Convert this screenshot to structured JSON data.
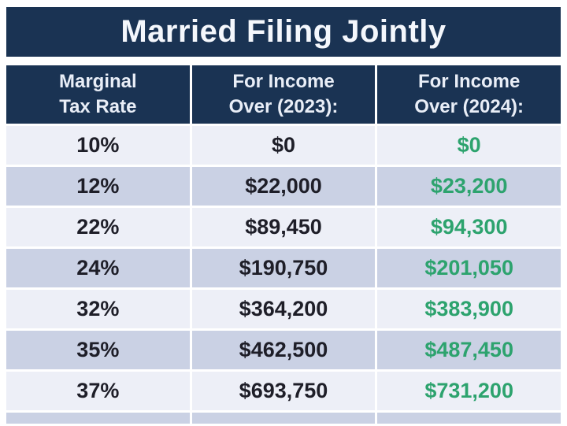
{
  "chart_data": {
    "type": "table",
    "title": "Married Filing Jointly",
    "columns": [
      "Marginal Tax Rate",
      "For Income Over (2023):",
      "For Income Over (2024):"
    ],
    "rows": [
      [
        "10%",
        "$0",
        "$0"
      ],
      [
        "12%",
        "$22,000",
        "$23,200"
      ],
      [
        "22%",
        "$89,450",
        "$94,300"
      ],
      [
        "24%",
        "$190,750",
        "$201,050"
      ],
      [
        "32%",
        "$364,200",
        "$383,900"
      ],
      [
        "35%",
        "$462,500",
        "$487,450"
      ],
      [
        "37%",
        "$693,750",
        "$731,200"
      ]
    ]
  },
  "header": {
    "columns": [
      {
        "line1": "Marginal",
        "line2": "Tax Rate"
      },
      {
        "line1": "For Income",
        "line2": "Over (2023):"
      },
      {
        "line1": "For Income",
        "line2": "Over (2024):"
      }
    ]
  },
  "colors": {
    "navy": "#1a3353",
    "row_light": "#edeff7",
    "row_dark": "#cad1e4",
    "green_2024": "#2da36e",
    "value_text": "#1e1e28",
    "header_text": "#e9eef7",
    "background": "#ffffff"
  }
}
